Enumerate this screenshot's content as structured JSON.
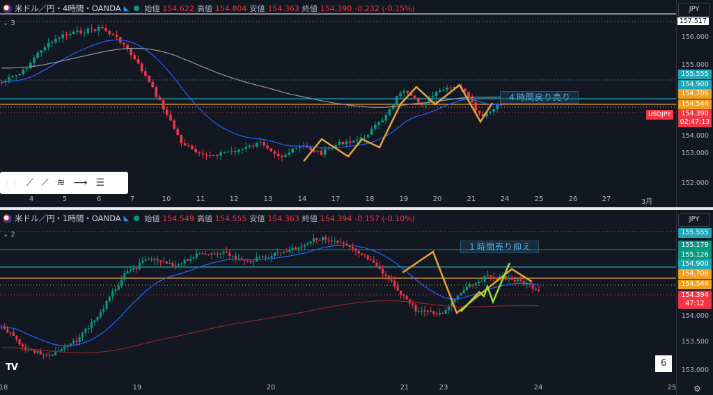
{
  "top": {
    "symbol": "米ドル／円・4時間・OANDA",
    "labels": {
      "open": "始値",
      "high": "高値",
      "low": "安値",
      "close": "終値"
    },
    "open": "154.622",
    "high": "154.804",
    "low": "154.363",
    "close": "154.390",
    "change": "-0.232 (-0.15%)",
    "indicator_count": "3",
    "currency": "JPY",
    "price_ticks": [
      "157.517",
      "156.000",
      "155.000",
      "154.000",
      "153.000",
      "152.000"
    ],
    "badges": [
      {
        "text": "155.555",
        "color": "#22a6b3"
      },
      {
        "text": "154.900",
        "color": "#22a6b3"
      },
      {
        "text": "154.706",
        "color": "#f0a020"
      },
      {
        "text": "154.544",
        "color": "#f0a020"
      },
      {
        "text": "154.390",
        "color": "#f23645"
      },
      {
        "text": "02:47:13",
        "color": "#f23645"
      }
    ],
    "symbol_tag": "USDJPY",
    "annotation": "４時間戻り売り",
    "dates": [
      "4",
      "5",
      "6",
      "7",
      "10",
      "11",
      "12",
      "13",
      "14",
      "17",
      "18",
      "19",
      "20",
      "21",
      "24",
      "25",
      "26",
      "27",
      "3月"
    ]
  },
  "bottom": {
    "symbol": "米ドル／円・1時間・OANDA",
    "labels": {
      "open": "始値",
      "high": "高値",
      "low": "安値",
      "close": "終値"
    },
    "open": "154.549",
    "high": "154.555",
    "low": "154.363",
    "close": "154.394",
    "change": "-0.157 (-0.10%)",
    "indicator_count": "2",
    "currency": "JPY",
    "price_ticks": [
      "154.000",
      "153.500",
      "153.000"
    ],
    "badges": [
      {
        "text": "155.555",
        "color": "#22a6b3"
      },
      {
        "text": "155.179",
        "color": "#089981"
      },
      {
        "text": "155.126",
        "color": "#089981"
      },
      {
        "text": "154.900",
        "color": "#22a6b3"
      },
      {
        "text": "154.706",
        "color": "#f0a020"
      },
      {
        "text": "154.544",
        "color": "#f0a020"
      },
      {
        "text": "154.394",
        "color": "#f23645"
      },
      {
        "text": "47:12",
        "color": "#f23645"
      }
    ],
    "annotation": "１時間売り抑え",
    "dates": [
      "18",
      "19",
      "20",
      "21",
      "23",
      "24",
      "25"
    ],
    "page_number": "6"
  },
  "icons": [
    "flag-icon",
    "lightning-icon",
    "market-status-icon",
    "chevron-down-icon",
    "trend-line-icon",
    "ray-icon",
    "pitchfork-icon",
    "horizontal-ray-icon",
    "parallel-lines-icon",
    "tradingview-logo-icon",
    "settings-gear-icon"
  ],
  "colors": {
    "bg": "#131722",
    "up": "#089981",
    "down": "#f23645",
    "ma_blue": "#2962ff",
    "ma_gray": "#9598a1",
    "ma_red": "#8b2a2a",
    "draw_orange": "#e8a33c",
    "draw_lime": "#9fdc3a",
    "line_cyan": "#22a6b3"
  }
}
